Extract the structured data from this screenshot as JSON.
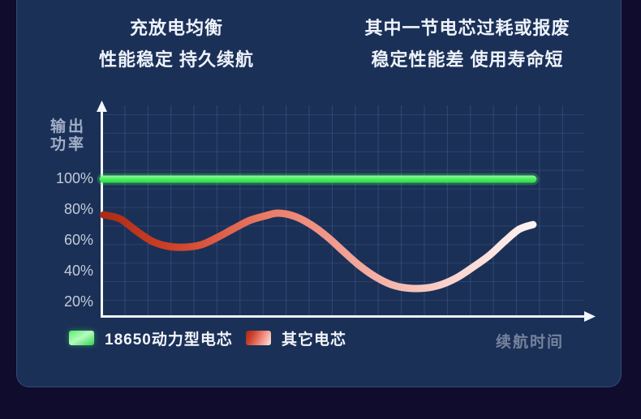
{
  "page": {
    "background": "#0f0c2d",
    "panel_background": "#1b3057",
    "axis_color": "#f2f6fb"
  },
  "titles": {
    "left": {
      "line1": "充放电均衡",
      "line2": "性能稳定 持久续航"
    },
    "right": {
      "line1": "其中一节电芯过耗或报废",
      "line2": "稳定性能差 使用寿命短"
    }
  },
  "chart_data": {
    "type": "line",
    "title": "",
    "ylabel": "输出功率",
    "xlabel": "续航时间",
    "grid": true,
    "legend_position": "bottom-left",
    "ylim": [
      10,
      148
    ],
    "y_ticks": [
      {
        "label": "100%",
        "value": 100
      },
      {
        "label": "80%",
        "value": 80
      },
      {
        "label": "60%",
        "value": 60
      },
      {
        "label": "40%",
        "value": 40
      },
      {
        "label": "20%",
        "value": 20
      }
    ],
    "series": [
      {
        "name": "18650动力型电芯",
        "color": "#3ce554",
        "gradient_direction": "vertical",
        "gradient_stops": [
          {
            "o": 0,
            "c": "#a0f8a9"
          },
          {
            "o": 0.5,
            "c": "#49ed61"
          },
          {
            "o": 1,
            "c": "#2bd847"
          }
        ],
        "x": [
          0.4,
          99.8
        ],
        "values": [
          100,
          100
        ]
      },
      {
        "name": "其它电芯",
        "color": "#e06b55",
        "gradient_direction": "horizontal",
        "gradient_stops": [
          {
            "o": 0,
            "c": "#a92c14"
          },
          {
            "o": 0.16,
            "c": "#cf4128"
          },
          {
            "o": 0.38,
            "c": "#ea7a67"
          },
          {
            "o": 0.6,
            "c": "#f3a89c"
          },
          {
            "o": 0.8,
            "c": "#f8d2cc"
          },
          {
            "o": 1,
            "c": "#fdf3f2"
          }
        ],
        "x": [
          0.5,
          4.3,
          8.1,
          11.8,
          15.6,
          19.3,
          23.1,
          26.8,
          30.6,
          34.3,
          38.1,
          40.9,
          44.7,
          48.4,
          52.2,
          55.9,
          59.7,
          63.4,
          67.2,
          70.9,
          74.7,
          78.4,
          82.2,
          85.9,
          89.7,
          93.4,
          96.6,
          99.8
        ],
        "values": [
          76.8,
          74.2,
          66.3,
          59.5,
          56.3,
          55.8,
          57.4,
          62.1,
          67.9,
          73.2,
          76.3,
          77.9,
          75.8,
          70.5,
          62.6,
          53.2,
          43.8,
          36.5,
          31.3,
          29.2,
          29.2,
          31.3,
          36.0,
          42.8,
          50.5,
          60.0,
          67.4,
          70.5
        ]
      }
    ]
  }
}
